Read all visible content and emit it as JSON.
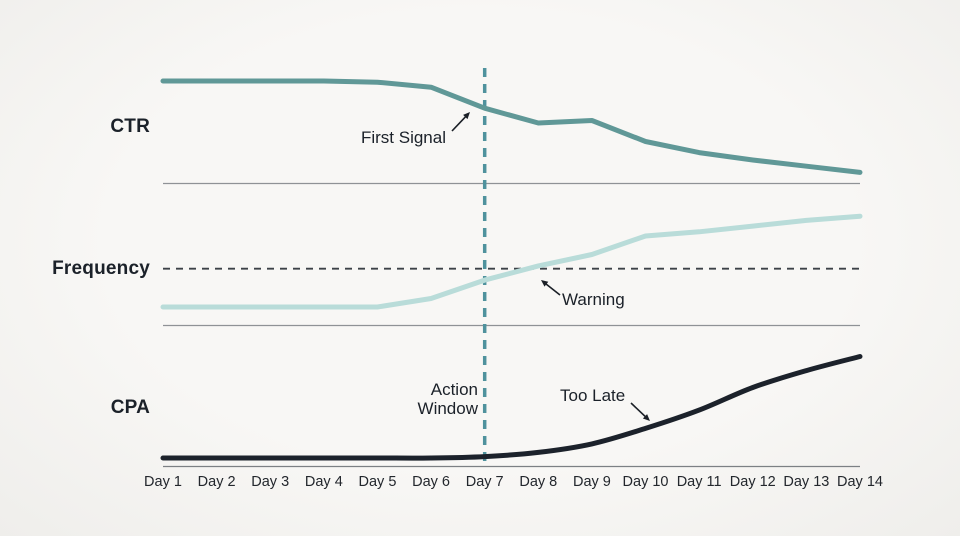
{
  "chart_data": {
    "type": "line",
    "title": "",
    "xlabel": "",
    "ylabel": "",
    "grid": false,
    "legend": "none",
    "ylim": [
      0,
      100
    ],
    "x_labels": [
      "Day 1",
      "Day 2",
      "Day 3",
      "Day 4",
      "Day 5",
      "Day 6",
      "Day 7",
      "Day 8",
      "Day 9",
      "Day 10",
      "Day 11",
      "Day 12",
      "Day 13",
      "Day 14"
    ],
    "panels": [
      {
        "label": "CTR",
        "color": "#609897",
        "smooth": false,
        "values": [
          83,
          83,
          83,
          83,
          82,
          78,
          61,
          49,
          51,
          34,
          25,
          19,
          14,
          9
        ]
      },
      {
        "label": "Frequency",
        "color": "#b9dcd9",
        "smooth": false,
        "values": [
          13,
          13,
          13,
          13,
          13,
          19,
          32,
          42,
          50,
          63,
          66,
          70,
          74,
          77
        ],
        "threshold": {
          "value": 40,
          "style": "dashed",
          "color": "#3c4147"
        }
      },
      {
        "label": "CPA",
        "color": "#1c222b",
        "smooth": true,
        "values": [
          6,
          6,
          6,
          6,
          6,
          6,
          7,
          10,
          16,
          27,
          40,
          56,
          68,
          78
        ]
      }
    ],
    "vertical_marker": {
      "x_label": "Day 7",
      "style": "dashed",
      "color": "#4f929d"
    },
    "annotations": [
      {
        "text": "First Signal"
      },
      {
        "text": "Warning"
      },
      {
        "text": "Action\nWindow"
      },
      {
        "text": "Too Late"
      }
    ]
  }
}
